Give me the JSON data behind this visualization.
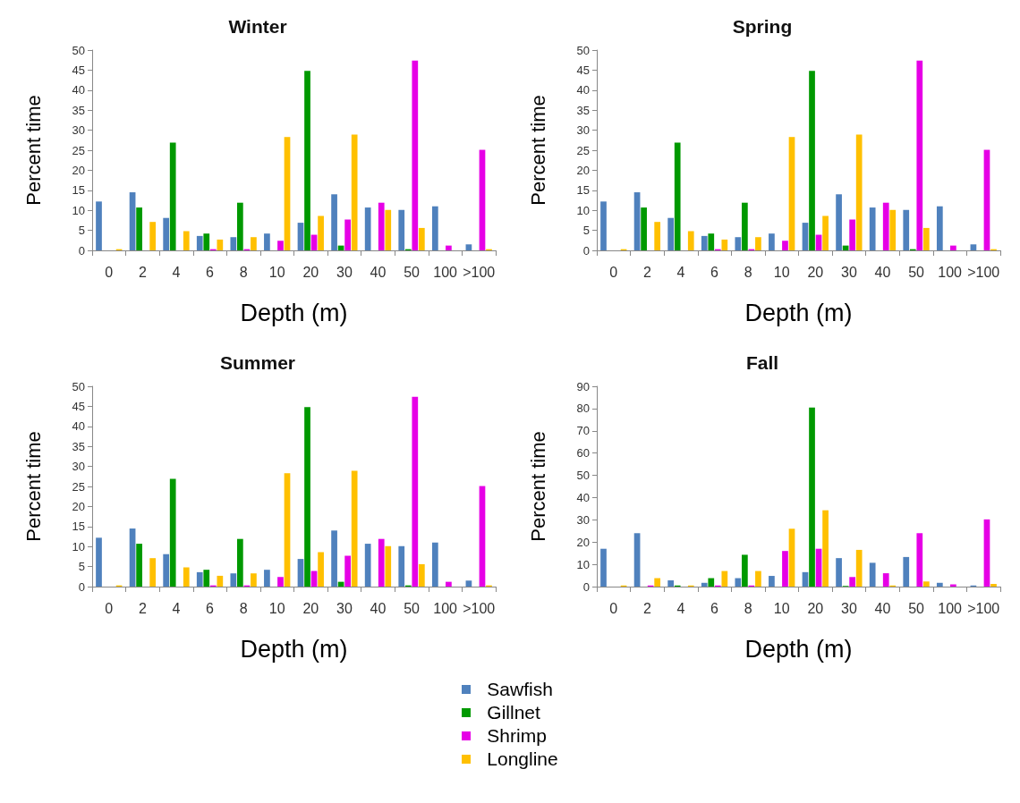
{
  "chart_data": [
    {
      "type": "bar",
      "title": "Winter",
      "xlabel": "Depth (m)",
      "ylabel": "Percent time",
      "categories": [
        "0",
        "2",
        "4",
        "6",
        "8",
        "10",
        "20",
        "30",
        "40",
        "50",
        "100",
        ">100"
      ],
      "ylim": [
        0,
        50
      ],
      "yticks": [
        0,
        5,
        10,
        15,
        20,
        25,
        30,
        35,
        40,
        45,
        50
      ],
      "grid": false,
      "legend": "bottom",
      "series": [
        {
          "name": "Sawfish",
          "color": "#4f81bd",
          "values": [
            12.2,
            14.5,
            8.1,
            3.6,
            3.3,
            4.2,
            6.9,
            14,
            10.7,
            10.1,
            11,
            1.5
          ]
        },
        {
          "name": "Gillnet",
          "color": "#009900",
          "values": [
            0,
            10.7,
            26.9,
            4.2,
            11.9,
            0,
            44.8,
            1.2,
            0,
            0.3,
            0,
            0
          ]
        },
        {
          "name": "Shrimp",
          "color": "#e600e6",
          "values": [
            0,
            0,
            0,
            0.3,
            0.3,
            2.4,
            3.9,
            7.7,
            11.9,
            47.4,
            1.2,
            25.1
          ]
        },
        {
          "name": "Longline",
          "color": "#ffc000",
          "values": [
            0.3,
            7.1,
            4.8,
            2.7,
            3.3,
            28.3,
            8.6,
            28.9,
            10.1,
            5.6,
            0,
            0.3
          ]
        }
      ]
    },
    {
      "type": "bar",
      "title": "Spring",
      "xlabel": "Depth (m)",
      "ylabel": "Percent time",
      "categories": [
        "0",
        "2",
        "4",
        "6",
        "8",
        "10",
        "20",
        "30",
        "40",
        "50",
        "100",
        ">100"
      ],
      "ylim": [
        0,
        50
      ],
      "yticks": [
        0,
        5,
        10,
        15,
        20,
        25,
        30,
        35,
        40,
        45,
        50
      ],
      "grid": false,
      "series": [
        {
          "color": "#4f81bd",
          "values": [
            12.2,
            14.5,
            8.1,
            3.6,
            3.3,
            4.2,
            6.9,
            14,
            10.7,
            10.1,
            11,
            1.5
          ]
        },
        {
          "color": "#009900",
          "values": [
            0,
            10.7,
            26.9,
            4.2,
            11.9,
            0,
            44.8,
            1.2,
            0,
            0.3,
            0,
            0
          ]
        },
        {
          "color": "#e600e6",
          "values": [
            0,
            0,
            0,
            0.3,
            0.3,
            2.4,
            3.9,
            7.7,
            11.9,
            47.4,
            1.2,
            25.1
          ]
        },
        {
          "color": "#ffc000",
          "values": [
            0.3,
            7.1,
            4.8,
            2.7,
            3.3,
            28.3,
            8.6,
            28.9,
            10.1,
            5.6,
            0,
            0.3
          ]
        }
      ]
    },
    {
      "type": "bar",
      "title": "Summer",
      "xlabel": "Depth (m)",
      "ylabel": "Percent time",
      "categories": [
        "0",
        "2",
        "4",
        "6",
        "8",
        "10",
        "20",
        "30",
        "40",
        "50",
        "100",
        ">100"
      ],
      "ylim": [
        0,
        50
      ],
      "yticks": [
        0,
        5,
        10,
        15,
        20,
        25,
        30,
        35,
        40,
        45,
        50
      ],
      "grid": false,
      "series": [
        {
          "color": "#4f81bd",
          "values": [
            12.2,
            14.5,
            8.1,
            3.6,
            3.3,
            4.2,
            6.9,
            14,
            10.7,
            10.1,
            11,
            1.5
          ]
        },
        {
          "color": "#009900",
          "values": [
            0,
            10.7,
            26.9,
            4.2,
            11.9,
            0,
            44.8,
            1.2,
            0,
            0.3,
            0,
            0
          ]
        },
        {
          "color": "#e600e6",
          "values": [
            0,
            0,
            0,
            0.3,
            0.3,
            2.4,
            3.9,
            7.7,
            11.9,
            47.4,
            1.2,
            25.1
          ]
        },
        {
          "color": "#ffc000",
          "values": [
            0.3,
            7.1,
            4.8,
            2.7,
            3.3,
            28.3,
            8.6,
            28.9,
            10.1,
            5.6,
            0,
            0.3
          ]
        }
      ]
    },
    {
      "type": "bar",
      "title": "Fall",
      "xlabel": "Depth (m)",
      "ylabel": "Percent time",
      "categories": [
        "0",
        "2",
        "4",
        "6",
        "8",
        "10",
        "20",
        "30",
        "40",
        "50",
        "100",
        ">100"
      ],
      "ylim": [
        0,
        90
      ],
      "yticks": [
        0,
        10,
        20,
        30,
        40,
        50,
        60,
        70,
        80,
        90
      ],
      "grid": false,
      "series": [
        {
          "color": "#4f81bd",
          "values": [
            17,
            24,
            2.8,
            1.7,
            3.8,
            4.8,
            6.5,
            12.8,
            10.7,
            13.3,
            1.7,
            0.5
          ]
        },
        {
          "color": "#009900",
          "values": [
            0,
            0,
            0.5,
            3.8,
            14.3,
            0,
            80.5,
            0.3,
            0,
            0,
            0,
            0
          ]
        },
        {
          "color": "#e600e6",
          "values": [
            0,
            0.5,
            0,
            0.5,
            0.5,
            16,
            17,
            4.3,
            6,
            24,
            1,
            30.2
          ]
        },
        {
          "color": "#ffc000",
          "values": [
            0.5,
            3.8,
            0.5,
            7,
            7,
            26,
            34.3,
            16.5,
            0.5,
            2.3,
            0,
            1.2
          ]
        }
      ]
    }
  ]
}
